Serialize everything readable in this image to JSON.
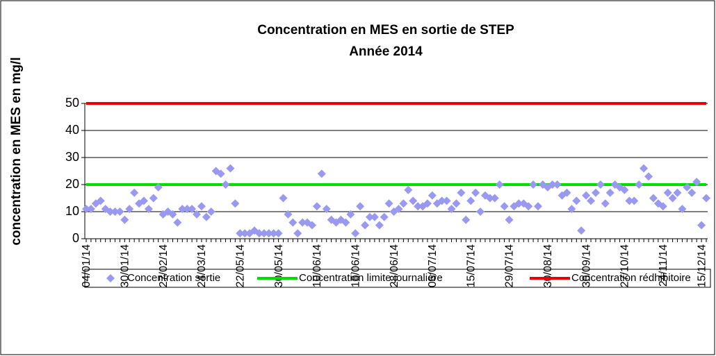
{
  "chart_data": {
    "type": "scatter-line",
    "title": "Concentration en MES en sortie de STEP",
    "subtitle": "Année 2014",
    "y_label": "concentration en MES en mg/l",
    "categories": [
      "04/01/14",
      null,
      null,
      null,
      null,
      null,
      null,
      null,
      "30/01/14",
      null,
      null,
      null,
      null,
      null,
      null,
      null,
      "27/02/14",
      null,
      null,
      null,
      null,
      null,
      null,
      null,
      "24/03/14",
      null,
      null,
      null,
      null,
      null,
      null,
      null,
      "22/05/14",
      null,
      null,
      null,
      null,
      null,
      null,
      null,
      "30/05/14",
      null,
      null,
      null,
      null,
      null,
      null,
      null,
      "10/06/14",
      null,
      null,
      null,
      null,
      null,
      null,
      null,
      "18/06/14",
      null,
      null,
      null,
      null,
      null,
      null,
      null,
      "28/06/14",
      null,
      null,
      null,
      null,
      null,
      null,
      null,
      "06/07/14",
      null,
      null,
      null,
      null,
      null,
      null,
      null,
      "15/07/14",
      null,
      null,
      null,
      null,
      null,
      null,
      null,
      "29/07/14",
      null,
      null,
      null,
      null,
      null,
      null,
      null,
      "30/08/14",
      null,
      null,
      null,
      null,
      null,
      null,
      null,
      "30/09/14",
      null,
      null,
      null,
      null,
      null,
      null,
      null,
      "27/10/14",
      null,
      null,
      null,
      null,
      null,
      null,
      null,
      "24/11/14",
      null,
      null,
      null,
      null,
      null,
      null,
      null,
      "15/12/14",
      null
    ],
    "series": [
      {
        "name": "Concentration sortie",
        "color": "#9999f2",
        "marker": "diamond",
        "values": [
          11,
          11,
          13,
          14,
          11,
          10,
          10,
          10,
          7,
          11,
          17,
          13,
          14,
          11,
          15,
          19,
          9,
          10,
          9,
          6,
          11,
          11,
          11,
          9,
          12,
          8,
          10,
          25,
          24,
          20,
          26,
          13,
          2,
          2,
          2,
          3,
          2,
          2,
          2,
          2,
          2,
          15,
          9,
          6,
          2,
          6,
          6,
          5,
          12,
          24,
          11,
          7,
          6,
          7,
          6,
          9,
          2,
          12,
          5,
          8,
          8,
          5,
          8,
          13,
          10,
          11,
          13,
          18,
          14,
          12,
          12,
          13,
          16,
          13,
          14,
          14,
          11,
          13,
          17,
          7,
          14,
          17,
          10,
          16,
          15,
          15,
          20,
          12,
          7,
          12,
          13,
          13,
          12,
          20,
          12,
          20,
          19,
          20,
          20,
          16,
          17,
          11,
          14,
          3,
          16,
          14,
          17,
          20,
          13,
          17,
          20,
          19,
          18,
          14,
          14,
          20,
          26,
          23,
          15,
          13,
          12,
          17,
          15,
          17,
          11,
          19,
          17,
          21,
          5,
          15
        ]
      },
      {
        "name": "Concentration limite journalière",
        "color": "#00dd00",
        "marker": "line",
        "values": [
          20,
          20,
          20,
          20,
          20,
          20,
          20,
          20,
          20,
          20,
          20,
          20,
          20,
          20,
          20,
          20,
          20,
          20,
          20,
          20,
          20,
          20,
          20,
          20,
          20,
          20,
          20,
          20,
          20,
          20,
          20,
          20,
          20,
          20,
          20,
          20,
          20,
          20,
          20,
          20,
          20,
          20,
          20,
          20,
          20,
          20,
          20,
          20,
          20,
          20,
          20,
          20,
          20,
          20,
          20,
          20,
          20,
          20,
          20,
          20,
          20,
          20,
          20,
          20,
          20,
          20,
          20,
          20,
          20,
          20,
          20,
          20,
          20,
          20,
          20,
          20,
          20,
          20,
          20,
          20,
          20,
          20,
          20,
          20,
          20,
          20,
          20,
          20,
          20,
          20,
          20,
          20,
          20,
          20,
          20,
          20,
          20,
          20,
          20,
          20,
          20,
          20,
          20,
          20,
          20,
          20,
          20,
          20,
          20,
          20,
          20,
          20,
          20,
          20,
          20,
          20,
          20,
          20,
          20,
          20,
          20,
          20,
          20,
          20,
          20,
          20,
          20,
          20,
          20,
          20
        ]
      },
      {
        "name": "Concentration rédhibitoire",
        "color": "#ee0000",
        "marker": "line",
        "values": [
          50,
          50,
          50,
          50,
          50,
          50,
          50,
          50,
          50,
          50,
          50,
          50,
          50,
          50,
          50,
          50,
          50,
          50,
          50,
          50,
          50,
          50,
          50,
          50,
          50,
          50,
          50,
          50,
          50,
          50,
          50,
          50,
          50,
          50,
          50,
          50,
          50,
          50,
          50,
          50,
          50,
          50,
          50,
          50,
          50,
          50,
          50,
          50,
          50,
          50,
          50,
          50,
          50,
          50,
          50,
          50,
          50,
          50,
          50,
          50,
          50,
          50,
          50,
          50,
          50,
          50,
          50,
          50,
          50,
          50,
          50,
          50,
          50,
          50,
          50,
          50,
          50,
          50,
          50,
          50,
          50,
          50,
          50,
          50,
          50,
          50,
          50,
          50,
          50,
          50,
          50,
          50,
          50,
          50,
          50,
          50,
          50,
          50,
          50,
          50,
          50,
          50,
          50,
          50,
          50,
          50,
          50,
          50,
          50,
          50,
          50,
          50,
          50,
          50,
          50,
          50,
          50,
          50,
          50,
          50,
          50,
          50,
          50,
          50,
          50,
          50,
          50,
          50,
          50,
          50
        ]
      }
    ],
    "ylim": [
      0,
      50
    ],
    "yticks": [
      0,
      10,
      20,
      30,
      40,
      50
    ],
    "grid": true,
    "legend": "bottom"
  }
}
